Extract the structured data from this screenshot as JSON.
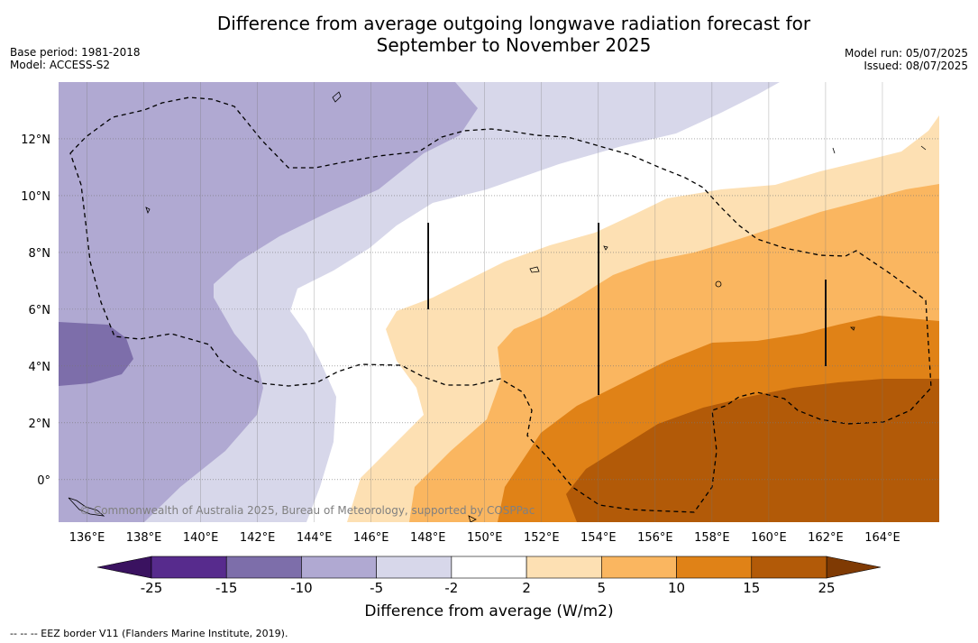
{
  "title_line1": "Difference from average outgoing longwave radiation forecast for",
  "title_line2": "September to November 2025",
  "base_period": "Base period: 1981-2018",
  "model": "Model: ACCESS-S2",
  "model_run": "Model run: 05/07/2025",
  "issued": "Issued: 08/07/2025",
  "copyright": "© Commonwealth of Australia 2025, Bureau of Meteorology, supported by COSPPac",
  "colorbar": {
    "title": "Difference from average (W/m2)",
    "labels": [
      "-25",
      "-15",
      "-10",
      "-5",
      "-2",
      "2",
      "5",
      "10",
      "15",
      "25"
    ],
    "colors": [
      "#572b8d",
      "#7d6eaa",
      "#b0a9d2",
      "#d7d7ea",
      "#ffffff",
      "#fde0b3",
      "#fab660",
      "#e08217",
      "#b25a08"
    ],
    "under_color": "#3a1260",
    "over_color": "#7f3a03"
  },
  "legend_text": "--  --  -- EEZ border V11 (Flanders Marine Institute, 2019).",
  "map": {
    "lon_range": [
      135,
      166
    ],
    "lat_range": [
      -1.5,
      14
    ],
    "lon_ticks": [
      "136°E",
      "138°E",
      "140°E",
      "142°E",
      "144°E",
      "146°E",
      "148°E",
      "150°E",
      "152°E",
      "154°E",
      "156°E",
      "158°E",
      "160°E",
      "162°E",
      "164°E"
    ],
    "lat_ticks": [
      "12°N",
      "10°N",
      "8°N",
      "6°N",
      "4°N",
      "2°N",
      "0°"
    ]
  }
}
